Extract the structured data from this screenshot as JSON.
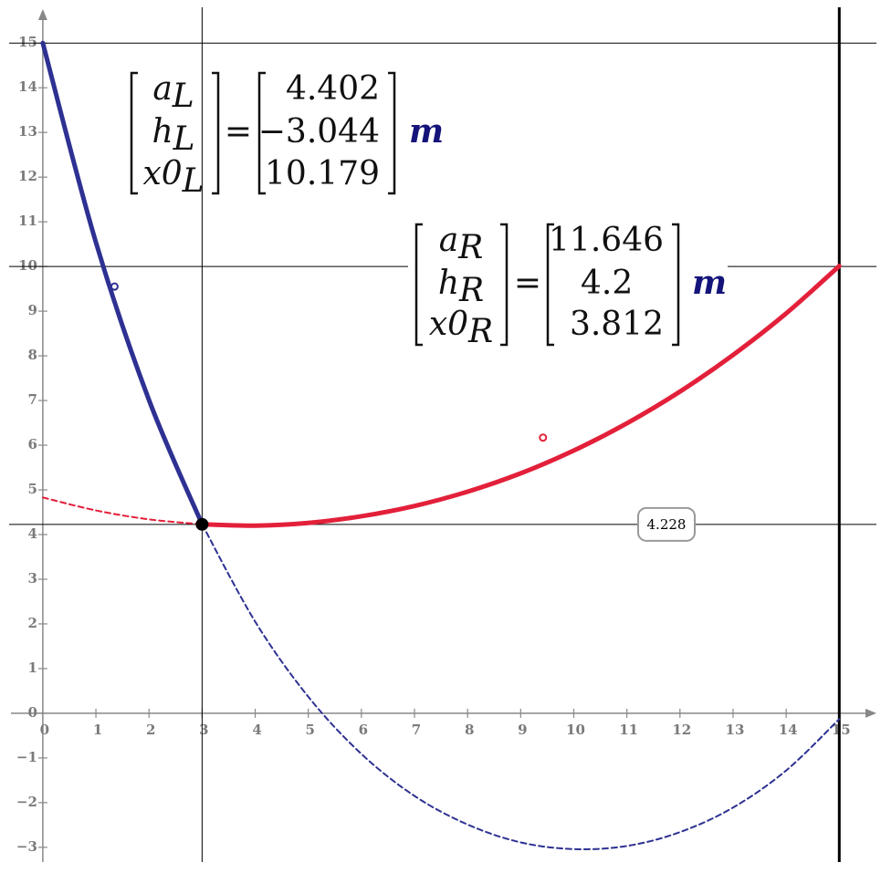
{
  "chart_data": {
    "type": "line",
    "x": [
      0,
      1,
      2,
      3,
      4,
      5,
      6,
      7,
      8,
      9,
      10,
      11,
      12,
      13,
      14,
      15
    ],
    "series": [
      {
        "color": "#2e3192",
        "dash": false,
        "values": [
          15.0,
          10.54,
          7.01,
          4.23,
          null,
          null,
          null,
          null,
          null,
          null,
          null,
          null,
          null,
          null,
          null,
          null
        ]
      },
      {
        "color": "#2e3192",
        "dash": true,
        "values": [
          null,
          null,
          null,
          4.23,
          2.05,
          0.37,
          -0.91,
          -1.85,
          -2.49,
          -2.89,
          -3.04,
          -2.97,
          -2.66,
          -2.11,
          -1.28,
          -0.13
        ]
      },
      {
        "color": "#e3203a",
        "dash": true,
        "values": [
          4.83,
          4.54,
          4.34,
          4.23,
          null,
          null,
          null,
          null,
          null,
          null,
          null,
          null,
          null,
          null,
          null,
          null
        ]
      },
      {
        "color": "#e3203a",
        "dash": false,
        "values": [
          null,
          null,
          null,
          4.23,
          4.2,
          4.26,
          4.41,
          4.64,
          4.96,
          5.37,
          5.88,
          6.49,
          7.2,
          8.02,
          8.95,
          10.01
        ]
      }
    ],
    "xlim": [
      -0.6,
      15.7
    ],
    "ylim": [
      -3.33,
      15.76
    ],
    "xticks": [
      0,
      1,
      2,
      3,
      4,
      5,
      6,
      7,
      8,
      9,
      10,
      11,
      12,
      13,
      14,
      15
    ],
    "yticks": [
      {
        "value": -3,
        "label": "−3"
      },
      {
        "value": -2,
        "label": "−2"
      },
      {
        "value": -1,
        "label": "−1"
      },
      0,
      1,
      2,
      3,
      4,
      5,
      6,
      7,
      8,
      9,
      10,
      11,
      12,
      13,
      14,
      15
    ],
    "markers": [
      {
        "axis": "x",
        "value": 3,
        "width": 1
      },
      {
        "axis": "x",
        "value": 15,
        "width": 3
      },
      {
        "axis": "y",
        "value": 15,
        "width": 1
      },
      {
        "axis": "y",
        "value": 10,
        "width": 1
      },
      {
        "axis": "y",
        "value": 4.228,
        "width": 1,
        "show_label": true
      }
    ],
    "points": [
      {
        "x": 3,
        "y": 4.228,
        "color": "#000000",
        "filled": true
      },
      {
        "x": 1.35,
        "y": 9.55,
        "color": "#2e3192",
        "filled": false
      },
      {
        "x": 9.42,
        "y": 6.17,
        "color": "#e3203a",
        "filled": false
      }
    ],
    "matrices": [
      {
        "lhs": [
          {
            "name": "a",
            "sub": "L"
          },
          {
            "name": "h",
            "sub": "L"
          },
          {
            "name": "x0",
            "sub": "L"
          }
        ],
        "equals": "=",
        "values": [
          4.402,
          -3.044,
          10.179
        ],
        "value_labels": [
          "4.402",
          "−3.044",
          "10.179"
        ],
        "unit": "m"
      },
      {
        "lhs": [
          {
            "name": "a",
            "sub": "R"
          },
          {
            "name": "h",
            "sub": "R"
          },
          {
            "name": "x0",
            "sub": "R"
          }
        ],
        "equals": "=",
        "values": [
          11.646,
          4.2,
          3.812
        ],
        "value_labels": [
          "11.646",
          "4.2",
          "3.812"
        ],
        "unit": "m"
      }
    ]
  }
}
